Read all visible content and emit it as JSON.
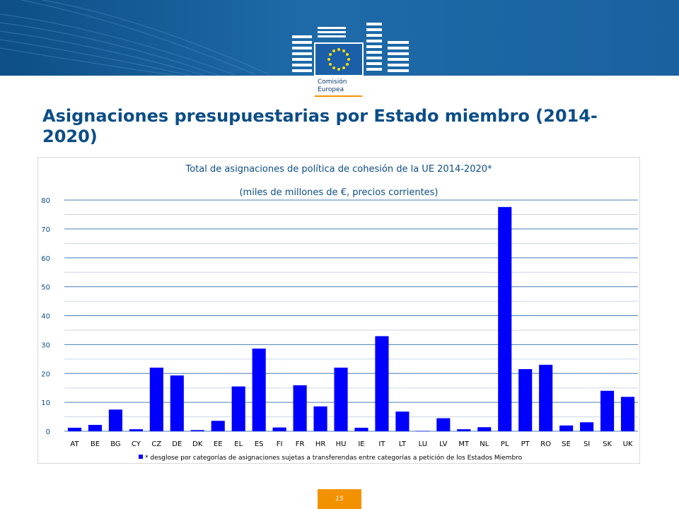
{
  "slide": {
    "title": "Asignaciones presupuestarias por Estado miembro (2014-2020)",
    "logo_text_line1": "Comisión",
    "logo_text_line2": "Europea",
    "page_number": "15"
  },
  "colors": {
    "banner": "#0d4f86",
    "title": "#0b4d87",
    "bar": "#0000ff",
    "accent": "#f39200"
  },
  "chart_data": {
    "type": "bar",
    "title": "Total de asignaciones de política de cohesión de la UE 2014-2020*",
    "subtitle": "(miles de millones de €, precios corrientes)",
    "categories": [
      "AT",
      "BE",
      "BG",
      "CY",
      "CZ",
      "DE",
      "DK",
      "EE",
      "EL",
      "ES",
      "FI",
      "FR",
      "HR",
      "HU",
      "IE",
      "IT",
      "LT",
      "LU",
      "LV",
      "MT",
      "NL",
      "PL",
      "PT",
      "RO",
      "SE",
      "SI",
      "SK",
      "UK"
    ],
    "values": [
      1.2,
      2.2,
      7.5,
      0.7,
      22,
      19.3,
      0.4,
      3.6,
      15.5,
      28.6,
      1.3,
      15.9,
      8.6,
      22,
      1.2,
      32.9,
      6.8,
      0.1,
      4.5,
      0.7,
      1.4,
      77.6,
      21.5,
      23,
      2,
      3.1,
      14,
      11.9
    ],
    "ylim": [
      0,
      80
    ],
    "yticks": [
      0,
      10,
      20,
      30,
      40,
      50,
      60,
      70,
      80
    ],
    "grid": true,
    "legend": {
      "position": "bottom",
      "text": "* desglose por categorías de asignaciones sujetas a transferendas entre categorías a petición de los Estados Miembro"
    }
  }
}
